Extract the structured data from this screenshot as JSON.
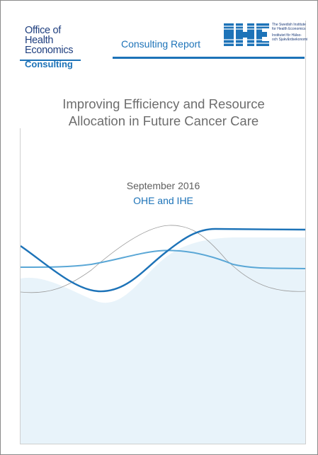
{
  "header": {
    "ohe_logo": {
      "line1": "Office of",
      "line2": "Health",
      "line3": "Economics",
      "sub": "Consulting"
    },
    "report_type": "Consulting Report",
    "ihe_logo": {
      "mark": "IHE",
      "en_line1": "The Swedish Institute",
      "en_line2": "for Health Economics",
      "sv_line1": "Institutet för Hälso-",
      "sv_line2": "och Sjukvårdsekonomi"
    }
  },
  "cover": {
    "title_line1": "Improving Efficiency and Resource",
    "title_line2": "Allocation in Future Cancer Care",
    "date": "September 2016",
    "authors": "OHE and IHE"
  },
  "colors": {
    "brand_blue": "#1d73b8",
    "navy": "#1a3a78",
    "wave_light": "#5aa7d6",
    "wave_fill": "#e8f3fa",
    "wave_grey": "#9a9a9a"
  }
}
